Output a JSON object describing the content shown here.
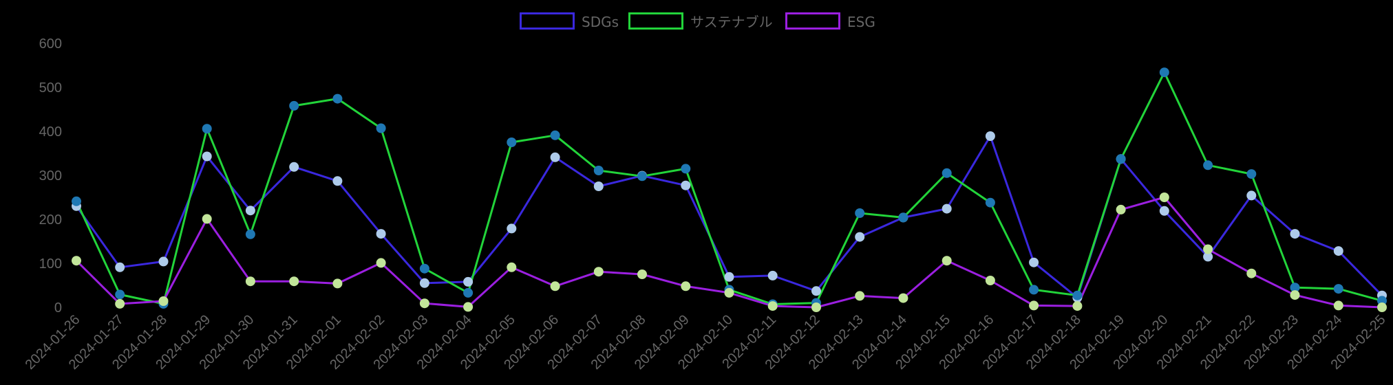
{
  "chart_data": {
    "type": "line",
    "title": "",
    "xlabel": "",
    "ylabel": "",
    "ylim": [
      0,
      600
    ],
    "yticks": [
      0,
      100,
      200,
      300,
      400,
      500,
      600
    ],
    "grid": false,
    "legend_position": "top-center",
    "categories": [
      "2024-01-26",
      "2024-01-27",
      "2024-01-28",
      "2024-01-29",
      "2024-01-30",
      "2024-01-31",
      "2024-02-01",
      "2024-02-02",
      "2024-02-03",
      "2024-02-04",
      "2024-02-05",
      "2024-02-06",
      "2024-02-07",
      "2024-02-08",
      "2024-02-09",
      "2024-02-10",
      "2024-02-11",
      "2024-02-12",
      "2024-02-13",
      "2024-02-14",
      "2024-02-15",
      "2024-02-16",
      "2024-02-17",
      "2024-02-18",
      "2024-02-19",
      "2024-02-20",
      "2024-02-21",
      "2024-02-22",
      "2024-02-23",
      "2024-02-24",
      "2024-02-25"
    ],
    "series": [
      {
        "name": "SDGs",
        "line_color": "#3a28de",
        "marker_color": "#aecbea",
        "values": [
          230,
          91,
          104,
          343,
          220,
          319,
          287,
          167,
          55,
          58,
          179,
          341,
          275,
          299,
          277,
          69,
          72,
          37,
          160,
          204,
          224,
          389,
          102,
          22,
          337,
          219,
          115,
          254,
          167,
          128,
          27
        ]
      },
      {
        "name": "サステナブル",
        "line_color": "#22d43a",
        "marker_color": "#1f78b4",
        "values": [
          241,
          29,
          8,
          406,
          166,
          458,
          474,
          407,
          88,
          33,
          375,
          391,
          311,
          298,
          315,
          40,
          7,
          10,
          214,
          204,
          305,
          238,
          40,
          27,
          337,
          534,
          323,
          303,
          45,
          42,
          15
        ]
      },
      {
        "name": "ESG",
        "line_color": "#9b1fe0",
        "marker_color": "#c2e59a",
        "values": [
          106,
          8,
          14,
          201,
          59,
          59,
          54,
          101,
          9,
          1,
          91,
          48,
          81,
          75,
          48,
          33,
          3,
          0,
          26,
          21,
          106,
          61,
          4,
          3,
          222,
          250,
          132,
          77,
          28,
          4,
          0
        ]
      }
    ]
  },
  "legend": {
    "items": [
      {
        "label": "SDGs",
        "color": "#3a28de"
      },
      {
        "label": "サステナブル",
        "color": "#22d43a"
      },
      {
        "label": "ESG",
        "color": "#9b1fe0"
      }
    ]
  }
}
